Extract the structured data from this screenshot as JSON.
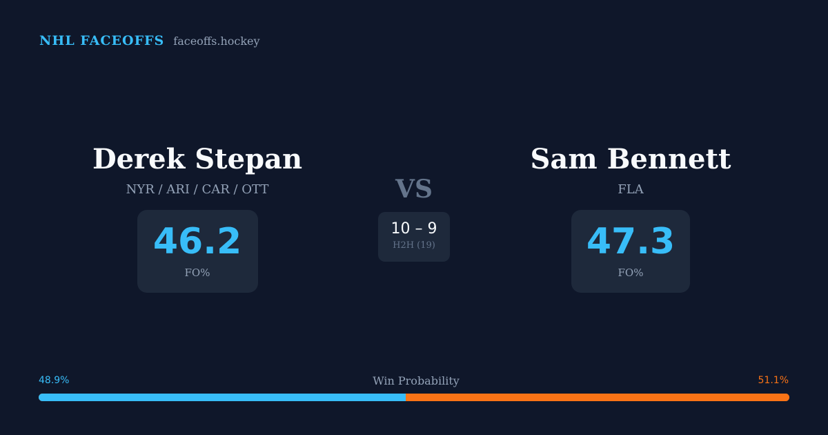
{
  "brand": {
    "name": "NHL FACEOFFS",
    "domain": "faceoffs.hockey"
  },
  "player1": {
    "name": "Derek Stepan",
    "teams": "NYR / ARI / CAR / OTT",
    "stat_value": "46.2",
    "stat_label": "FO%"
  },
  "player2": {
    "name": "Sam Bennett",
    "teams": "FLA",
    "stat_value": "47.3",
    "stat_label": "FO%"
  },
  "versus": {
    "label": "VS",
    "score": "10 – 9",
    "score_label": "H2H (19)"
  },
  "win_probability": {
    "title": "Win Probability",
    "left_label": "48.9%",
    "right_label": "51.1%",
    "left_value": 48.9,
    "right_value": 51.1
  },
  "colors": {
    "background": "#0f172a",
    "accent": "#38bdf8",
    "opponent": "#f97316",
    "card": "#1e293b"
  }
}
